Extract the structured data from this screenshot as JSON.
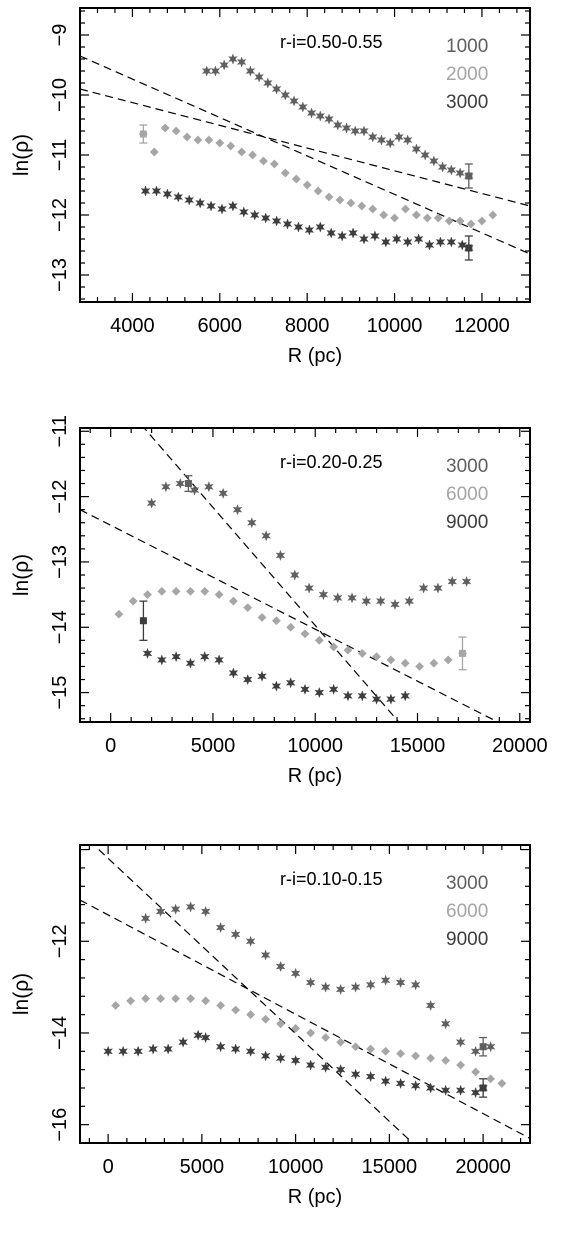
{
  "chart_data": [
    {
      "type": "scatter",
      "annotation": "r-i=0.50-0.55",
      "xlabel": "R (pc)",
      "ylabel": "ln(ρ)",
      "xlim": [
        2800,
        13100
      ],
      "ylim": [
        -13.45,
        -8.55
      ],
      "xticks": [
        4000,
        6000,
        8000,
        10000,
        12000
      ],
      "xtick_labels": [
        "4000",
        "6000",
        "8000",
        "10000",
        "12000"
      ],
      "yticks": [
        -9,
        -10,
        -11,
        -12,
        -13
      ],
      "ytick_labels": [
        "−9",
        "−10",
        "−11",
        "−12",
        "−13"
      ],
      "grid": false,
      "legend_position": "top-right",
      "colors": {
        "series": [
          "#5f5f5f",
          "#a6a6a6",
          "#3d3d3d"
        ],
        "fit": "#000000",
        "axes": "#000000"
      },
      "series": [
        {
          "name": "1000",
          "marker": "star",
          "x": [
            5700,
            5900,
            6100,
            6300,
            6500,
            6700,
            6900,
            7100,
            7300,
            7500,
            7700,
            7900,
            8100,
            8300,
            8500,
            8700,
            8900,
            9100,
            9300,
            9500,
            9700,
            9900,
            10100,
            10300,
            10500,
            10700,
            10900,
            11100,
            11300,
            11500,
            11700
          ],
          "y": [
            -9.6,
            -9.6,
            -9.5,
            -9.4,
            -9.45,
            -9.6,
            -9.7,
            -9.8,
            -9.9,
            -10.0,
            -10.1,
            -10.2,
            -10.3,
            -10.35,
            -10.4,
            -10.5,
            -10.55,
            -10.6,
            -10.6,
            -10.7,
            -10.75,
            -10.8,
            -10.7,
            -10.75,
            -10.9,
            -11.0,
            -11.1,
            -11.2,
            -11.25,
            -11.3,
            -11.35
          ],
          "error_bar": {
            "x": 11700,
            "y": -11.35,
            "err": 0.2
          }
        },
        {
          "name": "2000",
          "marker": "diamond",
          "x": [
            4250,
            4500,
            4750,
            5000,
            5250,
            5500,
            5750,
            6000,
            6250,
            6500,
            6750,
            7000,
            7250,
            7500,
            7750,
            8000,
            8250,
            8500,
            8750,
            9000,
            9250,
            9500,
            9750,
            10000,
            10250,
            10500,
            10750,
            11000,
            11250,
            11500,
            11750,
            12000,
            12250
          ],
          "y": [
            -10.65,
            -10.95,
            -10.55,
            -10.6,
            -10.7,
            -10.75,
            -10.75,
            -10.8,
            -10.85,
            -10.95,
            -11.0,
            -11.1,
            -11.15,
            -11.3,
            -11.4,
            -11.5,
            -11.6,
            -11.7,
            -11.75,
            -11.8,
            -11.85,
            -11.9,
            -12.0,
            -12.05,
            -11.9,
            -12.0,
            -12.05,
            -12.05,
            -12.1,
            -12.1,
            -12.15,
            -12.1,
            -12.0
          ],
          "error_bar": {
            "x": 4250,
            "y": -10.65,
            "err": 0.15
          }
        },
        {
          "name": "3000",
          "marker": "star",
          "x": [
            4300,
            4550,
            4800,
            5050,
            5300,
            5550,
            5800,
            6050,
            6300,
            6550,
            6800,
            7050,
            7300,
            7550,
            7800,
            8050,
            8300,
            8550,
            8800,
            9050,
            9300,
            9550,
            9800,
            10050,
            10300,
            10550,
            10800,
            11050,
            11300,
            11550,
            11700
          ],
          "y": [
            -11.6,
            -11.6,
            -11.65,
            -11.7,
            -11.75,
            -11.8,
            -11.85,
            -11.9,
            -11.85,
            -11.95,
            -12.0,
            -12.05,
            -12.1,
            -12.15,
            -12.2,
            -12.25,
            -12.2,
            -12.3,
            -12.35,
            -12.3,
            -12.4,
            -12.35,
            -12.45,
            -12.4,
            -12.45,
            -12.4,
            -12.5,
            -12.45,
            -12.45,
            -12.5,
            -12.55
          ],
          "error_bar": {
            "x": 11700,
            "y": -12.55,
            "err": 0.2
          }
        }
      ],
      "fit_lines": [
        {
          "x": [
            2800,
            13100
          ],
          "y": [
            -9.35,
            -12.65
          ]
        },
        {
          "x": [
            2800,
            13100
          ],
          "y": [
            -9.9,
            -11.85
          ]
        }
      ]
    },
    {
      "type": "scatter",
      "annotation": "r-i=0.20-0.25",
      "xlabel": "R (pc)",
      "ylabel": "ln(ρ)",
      "xlim": [
        -1500,
        20500
      ],
      "ylim": [
        -15.45,
        -10.95
      ],
      "xticks": [
        0,
        5000,
        10000,
        15000,
        20000
      ],
      "xtick_labels": [
        "0",
        "5000",
        "10000",
        "15000",
        "20000"
      ],
      "yticks": [
        -11,
        -12,
        -13,
        -14,
        -15
      ],
      "ytick_labels": [
        "−11",
        "−12",
        "−13",
        "−14",
        "−15"
      ],
      "grid": false,
      "legend_position": "top-right",
      "colors": {
        "series": [
          "#5f5f5f",
          "#a6a6a6",
          "#3d3d3d"
        ],
        "fit": "#000000",
        "axes": "#000000"
      },
      "series": [
        {
          "name": "3000",
          "marker": "star",
          "x": [
            2000,
            2700,
            3400,
            4100,
            4800,
            5500,
            6200,
            6900,
            7600,
            8300,
            9000,
            9700,
            10400,
            11100,
            11800,
            12500,
            13200,
            13900,
            14600,
            15300,
            16000,
            16700,
            17400
          ],
          "y": [
            -12.1,
            -11.85,
            -11.8,
            -11.9,
            -11.85,
            -11.95,
            -12.2,
            -12.4,
            -12.6,
            -12.9,
            -13.2,
            -13.4,
            -13.5,
            -13.55,
            -13.55,
            -13.6,
            -13.6,
            -13.65,
            -13.6,
            -13.4,
            -13.4,
            -13.3,
            -13.3
          ],
          "error_bar": {
            "x": 3800,
            "y": -11.8,
            "err": 0.12
          }
        },
        {
          "name": "6000",
          "marker": "diamond",
          "x": [
            400,
            1100,
            1800,
            2500,
            3200,
            3900,
            4600,
            5300,
            6000,
            6700,
            7400,
            8100,
            8800,
            9500,
            10200,
            10900,
            11600,
            12300,
            13000,
            13700,
            14400,
            15100,
            15800,
            16500,
            17200
          ],
          "y": [
            -13.8,
            -13.6,
            -13.5,
            -13.45,
            -13.45,
            -13.45,
            -13.45,
            -13.5,
            -13.6,
            -13.7,
            -13.85,
            -13.9,
            -14.0,
            -14.1,
            -14.2,
            -14.3,
            -14.35,
            -14.4,
            -14.45,
            -14.5,
            -14.55,
            -14.6,
            -14.55,
            -14.5,
            -14.4
          ],
          "error_bar": {
            "x": 17200,
            "y": -14.4,
            "err": 0.25
          }
        },
        {
          "name": "9000",
          "marker": "star",
          "x": [
            1800,
            2500,
            3200,
            3900,
            4600,
            5300,
            6000,
            6700,
            7400,
            8100,
            8800,
            9500,
            10200,
            10900,
            11600,
            12300,
            13000,
            13700,
            14400
          ],
          "y": [
            -14.4,
            -14.5,
            -14.45,
            -14.55,
            -14.45,
            -14.5,
            -14.7,
            -14.8,
            -14.75,
            -14.9,
            -14.85,
            -14.95,
            -15.0,
            -14.95,
            -15.05,
            -15.05,
            -15.1,
            -15.1,
            -15.05
          ],
          "error_bar": {
            "x": 1600,
            "y": -13.9,
            "err": 0.3
          }
        }
      ],
      "fit_lines": [
        {
          "x": [
            -1500,
            20500
          ],
          "y": [
            -12.2,
            -15.7
          ]
        },
        {
          "x": [
            1500,
            14500
          ],
          "y": [
            -10.9,
            -15.6
          ]
        }
      ]
    },
    {
      "type": "scatter",
      "annotation": "r-i=0.10-0.15",
      "xlabel": "R (pc)",
      "ylabel": "ln(ρ)",
      "xlim": [
        -1500,
        22500
      ],
      "ylim": [
        -16.4,
        -9.9
      ],
      "xticks": [
        0,
        5000,
        10000,
        15000,
        20000
      ],
      "xtick_labels": [
        "0",
        "5000",
        "10000",
        "15000",
        "20000"
      ],
      "yticks": [
        -12,
        -14,
        -16
      ],
      "ytick_labels": [
        "−12",
        "−14",
        "−16"
      ],
      "grid": false,
      "legend_position": "top-right",
      "colors": {
        "series": [
          "#5f5f5f",
          "#a6a6a6",
          "#3d3d3d"
        ],
        "fit": "#000000",
        "axes": "#000000"
      },
      "series": [
        {
          "name": "3000",
          "marker": "star",
          "x": [
            2000,
            2800,
            3600,
            4400,
            5200,
            6000,
            6800,
            7600,
            8400,
            9200,
            10000,
            10800,
            11600,
            12400,
            13200,
            14000,
            14800,
            15600,
            16400,
            17200,
            18000,
            18800,
            19600,
            20400
          ],
          "y": [
            -11.5,
            -11.35,
            -11.3,
            -11.25,
            -11.35,
            -11.7,
            -11.85,
            -12.0,
            -12.3,
            -12.55,
            -12.7,
            -12.9,
            -13.0,
            -13.05,
            -13.0,
            -12.95,
            -12.85,
            -12.9,
            -12.95,
            -13.4,
            -13.8,
            -14.2,
            -14.4,
            -14.3
          ],
          "error_bar": {
            "x": 20000,
            "y": -14.3,
            "err": 0.2
          }
        },
        {
          "name": "6000",
          "marker": "diamond",
          "x": [
            400,
            1200,
            2000,
            2800,
            3600,
            4400,
            5200,
            6000,
            6800,
            7600,
            8400,
            9200,
            10000,
            10800,
            11600,
            12400,
            13200,
            14000,
            14800,
            15600,
            16400,
            17200,
            18000,
            18800,
            19600,
            20400,
            21000
          ],
          "y": [
            -13.4,
            -13.3,
            -13.25,
            -13.25,
            -13.25,
            -13.25,
            -13.3,
            -13.4,
            -13.5,
            -13.6,
            -13.7,
            -13.8,
            -13.9,
            -14.0,
            -14.1,
            -14.2,
            -14.3,
            -14.35,
            -14.4,
            -14.45,
            -14.5,
            -14.55,
            -14.6,
            -14.7,
            -14.85,
            -15.0,
            -15.1
          ]
        },
        {
          "name": "9000",
          "marker": "star",
          "x": [
            0,
            800,
            1600,
            2400,
            3200,
            4000,
            4800,
            5200,
            6000,
            6800,
            7600,
            8400,
            9200,
            10000,
            10800,
            11600,
            12400,
            13200,
            14000,
            14800,
            15600,
            16400,
            17200,
            18000,
            18800,
            19600,
            20000
          ],
          "y": [
            -14.4,
            -14.4,
            -14.4,
            -14.35,
            -14.35,
            -14.2,
            -14.05,
            -14.1,
            -14.3,
            -14.35,
            -14.4,
            -14.5,
            -14.55,
            -14.6,
            -14.7,
            -14.75,
            -14.8,
            -14.9,
            -14.95,
            -15.05,
            -15.1,
            -15.15,
            -15.2,
            -15.25,
            -15.25,
            -15.3,
            -15.2
          ],
          "error_bar": {
            "x": 20000,
            "y": -15.2,
            "err": 0.2
          }
        }
      ],
      "fit_lines": [
        {
          "x": [
            -1500,
            22500
          ],
          "y": [
            -11.1,
            -16.3
          ]
        },
        {
          "x": [
            -500,
            16500
          ],
          "y": [
            -10.0,
            -16.5
          ]
        }
      ]
    }
  ]
}
